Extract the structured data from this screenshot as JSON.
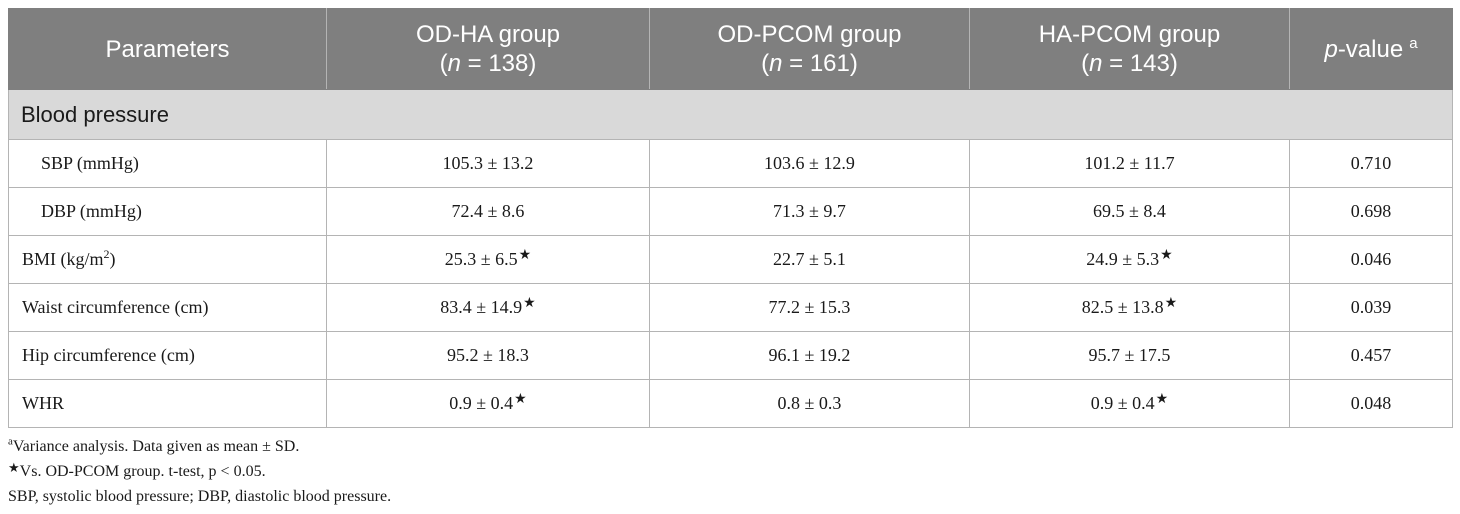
{
  "table": {
    "header": {
      "parameters": "Parameters",
      "groups": [
        {
          "name": "OD-HA group",
          "n_label": "n",
          "n_rest": " = 138)"
        },
        {
          "name": "OD-PCOM group",
          "n_label": "n",
          "n_rest": " = 161)"
        },
        {
          "name": "HA-PCOM group",
          "n_label": "n",
          "n_rest": " = 143)"
        }
      ],
      "pvalue_italic": "p",
      "pvalue_rest": "-value",
      "pvalue_sup": "a",
      "open_paren": "("
    },
    "section": "Blood pressure",
    "rows": [
      {
        "param": "SBP (mmHg)",
        "v1": "105.3 ± 13.2",
        "s1": "",
        "v2": "103.6 ± 12.9",
        "v3": "101.2 ± 11.7",
        "s3": "",
        "p": "0.710"
      },
      {
        "param": "DBP (mmHg)",
        "v1": "72.4 ± 8.6",
        "s1": "",
        "v2": "71.3 ± 9.7",
        "v3": "69.5 ± 8.4",
        "s3": "",
        "p": "0.698"
      },
      {
        "param": "BMI (kg/m",
        "param_sup": "2",
        "param_end": ")",
        "v1": "25.3 ± 6.5",
        "s1": "★",
        "v2": "22.7 ± 5.1",
        "v3": "24.9 ± 5.3",
        "s3": "★",
        "p": "0.046"
      },
      {
        "param": "Waist circumference (cm)",
        "v1": "83.4 ± 14.9",
        "s1": "★",
        "v2": "77.2 ± 15.3",
        "v3": "82.5 ± 13.8",
        "s3": "★",
        "p": "0.039"
      },
      {
        "param": "Hip circumference (cm)",
        "v1": "95.2 ± 18.3",
        "s1": "",
        "v2": "96.1 ± 19.2",
        "v3": "95.7 ± 17.5",
        "s3": "",
        "p": "0.457"
      },
      {
        "param": "WHR",
        "v1": "0.9 ± 0.4",
        "s1": "★",
        "v2": "0.8 ± 0.3",
        "v3": "0.9 ± 0.4",
        "s3": "★",
        "p": "0.048"
      }
    ]
  },
  "footnotes": {
    "a_mark": "a",
    "a_text": "Variance analysis. Data given as mean ± SD.",
    "star_mark": "★",
    "star_text": "Vs. OD-PCOM group. t-test, p < 0.05.",
    "abbrev": "SBP, systolic blood pressure; DBP, diastolic blood pressure."
  }
}
